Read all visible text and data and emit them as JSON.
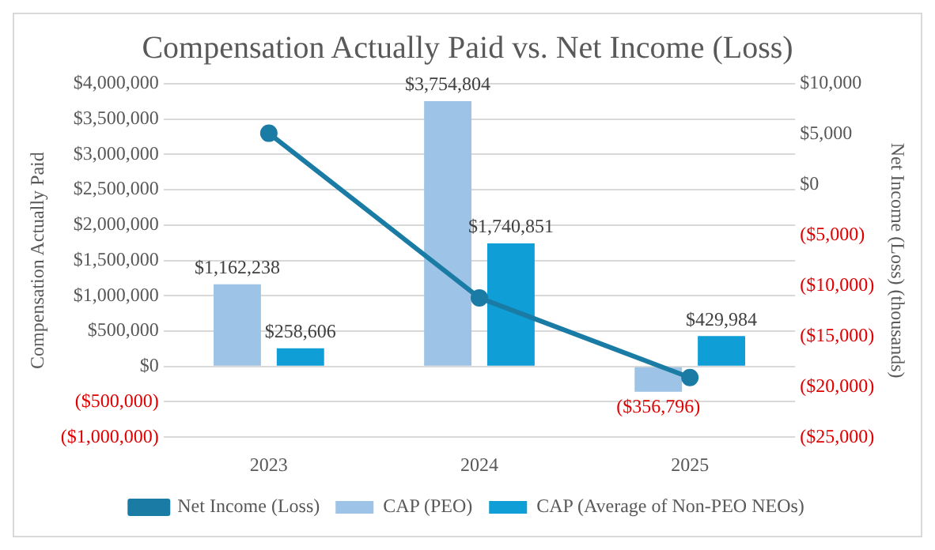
{
  "chart_data": {
    "type": "bar",
    "title": "Compensation Actually Paid vs. Net Income (Loss)",
    "ylabel": "Compensation Actually Paid",
    "y2label": "Net Income (Loss) (thousands)",
    "categories": [
      "2023",
      "2024",
      "2025"
    ],
    "series": [
      {
        "name": "CAP (PEO)",
        "color": "#9dc3e6",
        "values": [
          1162238,
          3754804,
          -356796
        ],
        "value_labels": [
          "$1,162,238",
          "$3,754,804",
          "($356,796)"
        ]
      },
      {
        "name": "CAP (Average of Non-PEO NEOs)",
        "color": "#0f9ed5",
        "values": [
          258606,
          1740851,
          429984
        ],
        "value_labels": [
          "$258,606",
          "$1,740,851",
          "$429,984"
        ]
      },
      {
        "name": "Net Income (Loss)",
        "type": "line",
        "axis": "y2",
        "color": "#1a7ca4",
        "marker": "circle",
        "values": [
          5100,
          -11200,
          -19100
        ]
      }
    ],
    "ylim": [
      -1000000,
      4000000
    ],
    "yticks": [
      {
        "value": -1000000,
        "label": "($1,000,000)"
      },
      {
        "value": -500000,
        "label": "($500,000)"
      },
      {
        "value": 0,
        "label": "$0"
      },
      {
        "value": 500000,
        "label": "$500,000"
      },
      {
        "value": 1000000,
        "label": "$1,000,000"
      },
      {
        "value": 1500000,
        "label": "$1,500,000"
      },
      {
        "value": 2000000,
        "label": "$2,000,000"
      },
      {
        "value": 2500000,
        "label": "$2,500,000"
      },
      {
        "value": 3000000,
        "label": "$3,000,000"
      },
      {
        "value": 3500000,
        "label": "$3,500,000"
      },
      {
        "value": 4000000,
        "label": "$4,000,000"
      }
    ],
    "y2lim": [
      -25000,
      10000
    ],
    "y2ticks": [
      {
        "value": -25000,
        "label": "($25,000)"
      },
      {
        "value": -20000,
        "label": "($20,000)"
      },
      {
        "value": -15000,
        "label": "($15,000)"
      },
      {
        "value": -10000,
        "label": "($10,000)"
      },
      {
        "value": -5000,
        "label": "($5,000)"
      },
      {
        "value": 0,
        "label": "$0"
      },
      {
        "value": 5000,
        "label": "$5,000"
      },
      {
        "value": 10000,
        "label": "$10,000"
      }
    ],
    "grid": "y",
    "legend": "bottom"
  }
}
